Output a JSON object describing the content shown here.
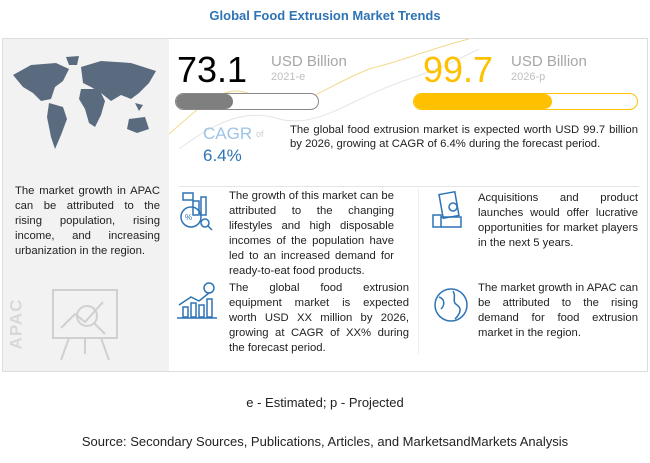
{
  "title": "Global Food Extrusion Market Trends",
  "left_panel": {
    "text": "The market growth in APAC can be attributed to the rising population, rising income, and increasing urbanization in  the region.",
    "region_label": "APAC"
  },
  "metric_2021": {
    "value": "73.1",
    "unit": "USD Billion",
    "year": "2021-e",
    "progress_percent": 40,
    "color": "#7f7f7f"
  },
  "metric_2026": {
    "value": "99.7",
    "unit": "USD Billion",
    "year": "2026-p",
    "progress_percent": 62,
    "color": "#ffc000"
  },
  "cagr": {
    "label": "CAGR",
    "of": "of",
    "value": "6.4%"
  },
  "summary": "The global food extrusion market is expected worth USD 99.7 billion by 2026, growing at CAGR of 6.4% during the forecast period.",
  "insights": [
    {
      "icon": "analytics-icon",
      "text": "The growth of this market can be attributed to the changing lifestyles and high disposable incomes of the population have led to an increased demand for ready-to-eat food products."
    },
    {
      "icon": "money-hand-icon",
      "text": "Acquisitions and product launches would offer lucrative opportunities for market players in the next 5 years."
    },
    {
      "icon": "growth-chart-icon",
      "text": "The global food extrusion equipment market is expected worth USD XX million by 2026, growing at CAGR of XX% during the forecast period."
    },
    {
      "icon": "globe-icon",
      "text": "The market growth in APAC can be attributed to the rising demand for food extrusion market in the region."
    }
  ],
  "footnote": "e - Estimated; p - Projected",
  "source": "Source: Secondary Sources, Publications, Articles, and MarketsandMarkets Analysis"
}
